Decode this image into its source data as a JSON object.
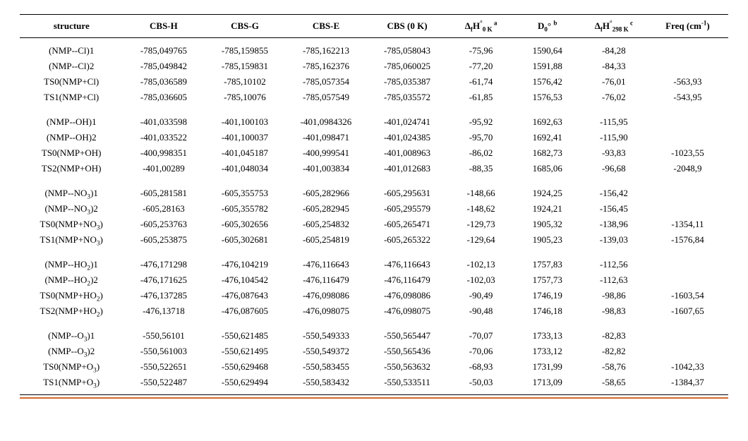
{
  "headers": {
    "structure": "structure",
    "cbsh": "CBS-H",
    "cbsg": "CBS-G",
    "cbse": "CBS-E",
    "cbs0": "CBS (0 K)",
    "dfh0_pre": "Δ",
    "dfh0_f": "f",
    "dfh0_H": "H",
    "dfh0_deg": "°",
    "dfh0_sub": "0 K",
    "dfh0_sup": "a",
    "d0_pre": "D",
    "d0_sub": "0",
    "d0_deg": "°",
    "d0_sup": "b",
    "dfh298_pre": "Δ",
    "dfh298_f": "f",
    "dfh298_H": "H",
    "dfh298_deg": "°",
    "dfh298_sub": "298 K",
    "dfh298_sup": "c",
    "freq_pre": "Freq (cm",
    "freq_sup": "-1",
    "freq_post": ")"
  },
  "groups": [
    {
      "rows": [
        {
          "structure_html": "(NMP--Cl)1",
          "cbsh": "-785,049765",
          "cbsg": "-785,159855",
          "cbse": "-785,162213",
          "cbs0": "-785,058043",
          "dfh0": "-75,96",
          "d0": "1590,64",
          "dfh298": "-84,28",
          "freq": ""
        },
        {
          "structure_html": "(NMP--Cl)2",
          "cbsh": "-785,049842",
          "cbsg": "-785,159831",
          "cbse": "-785,162376",
          "cbs0": "-785,060025",
          "dfh0": "-77,20",
          "d0": "1591,88",
          "dfh298": "-84,33",
          "freq": ""
        },
        {
          "structure_html": "TS0(NMP+Cl)",
          "cbsh": "-785,036589",
          "cbsg": "-785,10102",
          "cbse": "-785,057354",
          "cbs0": "-785,035387",
          "dfh0": "-61,74",
          "d0": "1576,42",
          "dfh298": "-76,01",
          "freq": "-563,93"
        },
        {
          "structure_html": "TS1(NMP+Cl)",
          "cbsh": "-785,036605",
          "cbsg": "-785,10076",
          "cbse": "-785,057549",
          "cbs0": "-785,035572",
          "dfh0": "-61,85",
          "d0": "1576,53",
          "dfh298": "-76,02",
          "freq": "-543,95"
        }
      ]
    },
    {
      "rows": [
        {
          "structure_html": "(NMP--OH)1",
          "cbsh": "-401,033598",
          "cbsg": "-401,100103",
          "cbse": "-401,0984326",
          "cbs0": "-401,024741",
          "dfh0": "-95,92",
          "d0": "1692,63",
          "dfh298": "-115,95",
          "freq": ""
        },
        {
          "structure_html": "(NMP--OH)2",
          "cbsh": "-401,033522",
          "cbsg": "-401,100037",
          "cbse": "-401,098471",
          "cbs0": "-401,024385",
          "dfh0": "-95,70",
          "d0": "1692,41",
          "dfh298": "-115,90",
          "freq": ""
        },
        {
          "structure_html": "TS0(NMP+OH)",
          "cbsh": "-400,998351",
          "cbsg": "-401,045187",
          "cbse": "-400,999541",
          "cbs0": "-401,008963",
          "dfh0": "-86,02",
          "d0": "1682,73",
          "dfh298": "-93,83",
          "freq": "-1023,55"
        },
        {
          "structure_html": "TS2(NMP+OH)",
          "cbsh": "-401,00289",
          "cbsg": "-401,048034",
          "cbse": "-401,003834",
          "cbs0": "-401,012683",
          "dfh0": "-88,35",
          "d0": "1685,06",
          "dfh298": "-96,68",
          "freq": "-2048,9"
        }
      ]
    },
    {
      "rows": [
        {
          "structure_html": "(NMP--NO<sub>3</sub>)1",
          "cbsh": "-605,281581",
          "cbsg": "-605,355753",
          "cbse": "-605,282966",
          "cbs0": "-605,295631",
          "dfh0": "-148,66",
          "d0": "1924,25",
          "dfh298": "-156,42",
          "freq": ""
        },
        {
          "structure_html": "(NMP--NO<sub>3</sub>)2",
          "cbsh": "-605,28163",
          "cbsg": "-605,355782",
          "cbse": "-605,282945",
          "cbs0": "-605,295579",
          "dfh0": "-148,62",
          "d0": "1924,21",
          "dfh298": "-156,45",
          "freq": ""
        },
        {
          "structure_html": "TS0(NMP+NO<sub>3</sub>)",
          "cbsh": "-605,253763",
          "cbsg": "-605,302656",
          "cbse": "-605,254832",
          "cbs0": "-605,265471",
          "dfh0": "-129,73",
          "d0": "1905,32",
          "dfh298": "-138,96",
          "freq": "-1354,11"
        },
        {
          "structure_html": "TS1(NMP+NO<sub>3</sub>)",
          "cbsh": "-605,253875",
          "cbsg": "-605,302681",
          "cbse": "-605,254819",
          "cbs0": "-605,265322",
          "dfh0": "-129,64",
          "d0": "1905,23",
          "dfh298": "-139,03",
          "freq": "-1576,84"
        }
      ]
    },
    {
      "rows": [
        {
          "structure_html": "(NMP--HO<sub>2</sub>)1",
          "cbsh": "-476,171298",
          "cbsg": "-476,104219",
          "cbse": "-476,116643",
          "cbs0": "-476,116643",
          "dfh0": "-102,13",
          "d0": "1757,83",
          "dfh298": "-112,56",
          "freq": ""
        },
        {
          "structure_html": "(NMP--HO<sub>2</sub>)2",
          "cbsh": "-476,171625",
          "cbsg": "-476,104542",
          "cbse": "-476,116479",
          "cbs0": "-476,116479",
          "dfh0": "-102,03",
          "d0": "1757,73",
          "dfh298": "-112,63",
          "freq": ""
        },
        {
          "structure_html": "TS0(NMP+HO<sub>2</sub>)",
          "cbsh": "-476,137285",
          "cbsg": "-476,087643",
          "cbse": "-476,098086",
          "cbs0": "-476,098086",
          "dfh0": "-90,49",
          "d0": "1746,19",
          "dfh298": "-98,86",
          "freq": "-1603,54"
        },
        {
          "structure_html": "TS2(NMP+HO<sub>2</sub>)",
          "cbsh": "-476,13718",
          "cbsg": "-476,087605",
          "cbse": "-476,098075",
          "cbs0": "-476,098075",
          "dfh0": "-90,48",
          "d0": "1746,18",
          "dfh298": "-98,83",
          "freq": "-1607,65"
        }
      ]
    },
    {
      "rows": [
        {
          "structure_html": "(NMP--O<sub>3</sub>)1",
          "cbsh": "-550,56101",
          "cbsg": "-550,621485",
          "cbse": "-550,549333",
          "cbs0": "-550,565447",
          "dfh0": "-70,07",
          "d0": "1733,13",
          "dfh298": "-82,83",
          "freq": ""
        },
        {
          "structure_html": "(NMP--O<sub>3</sub>)2",
          "cbsh": "-550,561003",
          "cbsg": "-550,621495",
          "cbse": "-550,549372",
          "cbs0": "-550,565436",
          "dfh0": "-70,06",
          "d0": "1733,12",
          "dfh298": "-82,82",
          "freq": ""
        },
        {
          "structure_html": "TS0(NMP+O<sub>3</sub>)",
          "cbsh": "-550,522651",
          "cbsg": "-550,629468",
          "cbse": "-550,583455",
          "cbs0": "-550,563632",
          "dfh0": "-68,93",
          "d0": "1731,99",
          "dfh298": "-58,76",
          "freq": "-1042,33"
        },
        {
          "structure_html": "TS1(NMP+O<sub>3</sub>)",
          "cbsh": "-550,522487",
          "cbsg": "-550,629494",
          "cbse": "-550,583432",
          "cbs0": "-550,533511",
          "dfh0": "-50,03",
          "d0": "1713,09",
          "dfh298": "-58,65",
          "freq": "-1384,37"
        }
      ]
    }
  ],
  "style": {
    "font_family": "Times New Roman",
    "font_size_pt": 10,
    "header_font_weight": "bold",
    "text_color": "#000000",
    "background_color": "#ffffff",
    "rule_color": "#000000",
    "orange_rule_color": "#d46a2a"
  }
}
